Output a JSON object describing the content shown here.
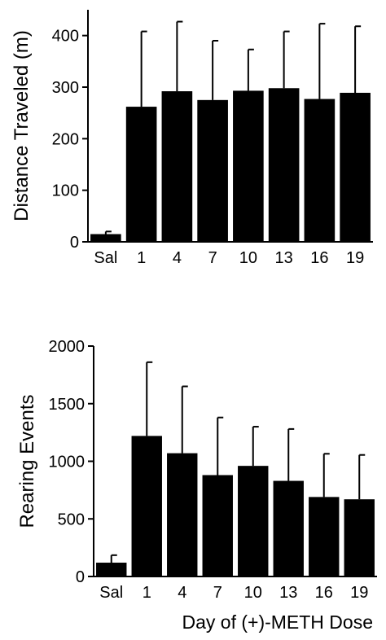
{
  "chart_data": [
    {
      "type": "bar",
      "ylabel": "Distance Traveled (m)",
      "categories": [
        "Sal",
        "1",
        "4",
        "7",
        "10",
        "13",
        "16",
        "19"
      ],
      "values": [
        15,
        262,
        292,
        275,
        293,
        298,
        277,
        289
      ],
      "errors": [
        5,
        146,
        135,
        115,
        80,
        110,
        146,
        129
      ],
      "color": "#000000",
      "ylim": [
        0,
        450
      ],
      "yticks": [
        0,
        100,
        200,
        300,
        400
      ]
    },
    {
      "type": "bar",
      "ylabel": "Rearing Events",
      "xlabel": "Day of (+)-METH Dose",
      "categories": [
        "Sal",
        "1",
        "4",
        "7",
        "10",
        "13",
        "16",
        "19"
      ],
      "values": [
        120,
        1220,
        1070,
        880,
        960,
        830,
        690,
        670
      ],
      "errors": [
        65,
        640,
        580,
        500,
        340,
        450,
        375,
        385
      ],
      "color": "#000000",
      "ylim": [
        0,
        2000
      ],
      "yticks": [
        0,
        500,
        1000,
        1500,
        2000
      ]
    }
  ]
}
